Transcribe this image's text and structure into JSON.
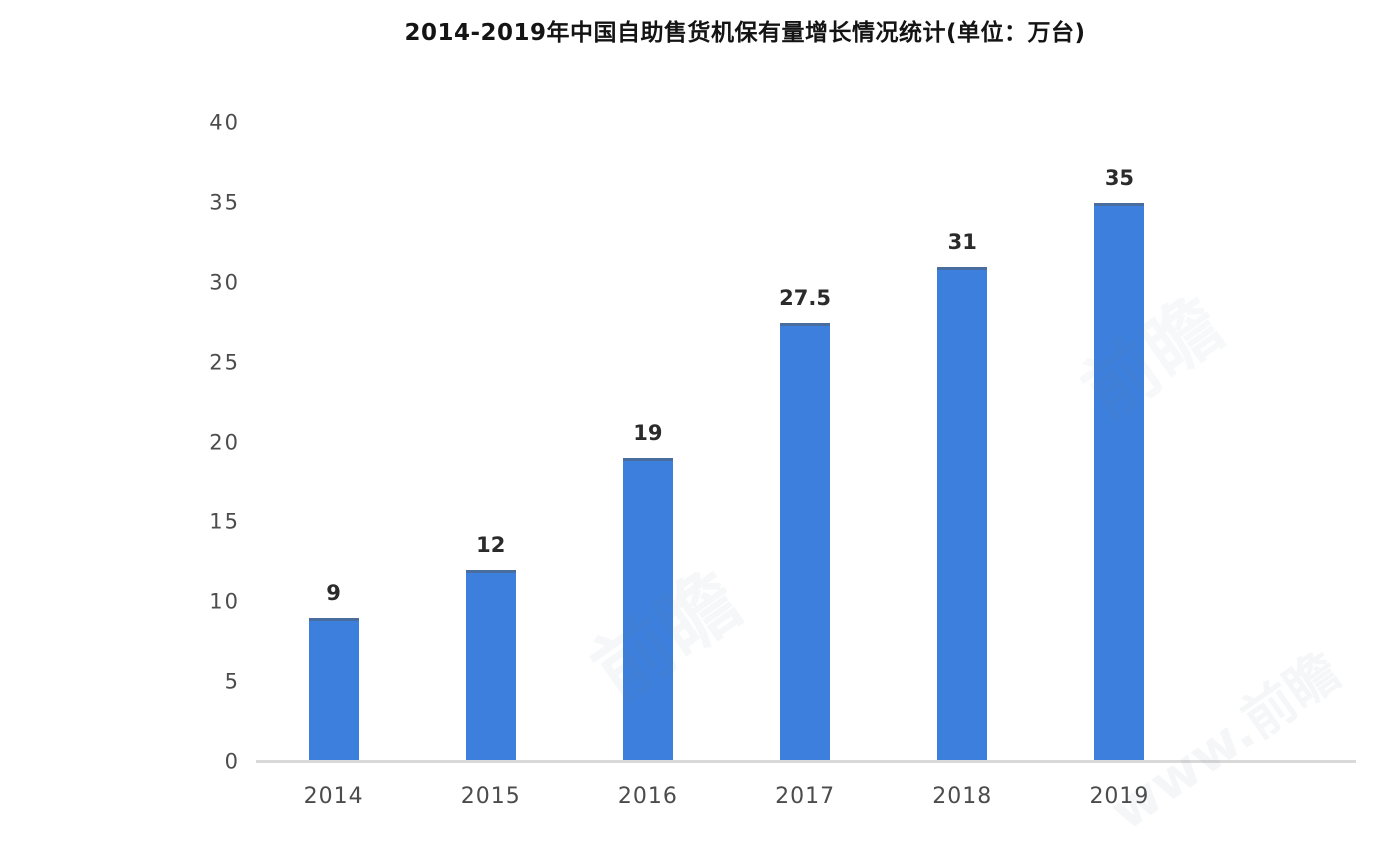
{
  "title": "2014-2019年中国自助售货机保有量增长情况统计(单位：万台)",
  "chart_data": {
    "type": "bar",
    "title": "2014-2019年中国自助售货机保有量增长情况统计(单位：万台)",
    "unit_note": "单位：万台",
    "categories": [
      "2014",
      "2015",
      "2016",
      "2017",
      "2018",
      "2019"
    ],
    "values": [
      9,
      12,
      19,
      27.5,
      31,
      35
    ],
    "value_labels": [
      "9",
      "12",
      "19",
      "27.5",
      "31",
      "35"
    ],
    "xlabel": "",
    "ylabel": "",
    "ylim": [
      0,
      40
    ],
    "y_ticks": [
      0,
      5,
      10,
      15,
      20,
      25,
      30,
      35,
      40
    ],
    "grid": false,
    "legend": "none",
    "bar_color": "#3d7fdc",
    "bar_top_edge_color": "#545f6c",
    "axis_line_color": "#d9d9d9",
    "title_color": "#141414",
    "value_label_color": "#2b2b2b",
    "tick_label_color": "#4c4c4c",
    "background_color": "#ffffff"
  },
  "watermark": {
    "logo_text": "前瞻",
    "corner_text": "www.前瞻"
  }
}
